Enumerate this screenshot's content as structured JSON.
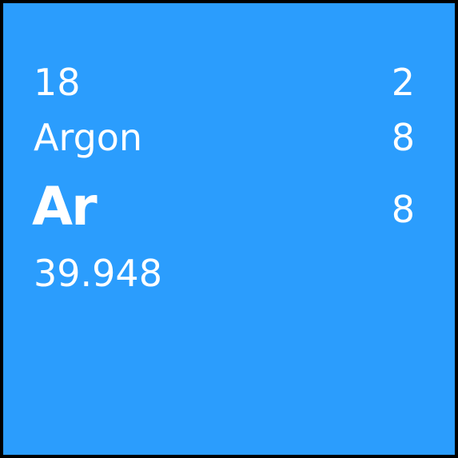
{
  "element": {
    "atomic_number": "18",
    "name": "Argon",
    "symbol": "Ar",
    "atomic_mass": "39.948",
    "electron_shells": [
      "2",
      "8",
      "8"
    ]
  },
  "colors": {
    "tile_background": "#2b9dfd",
    "border": "#000000",
    "text": "#ffffff"
  }
}
